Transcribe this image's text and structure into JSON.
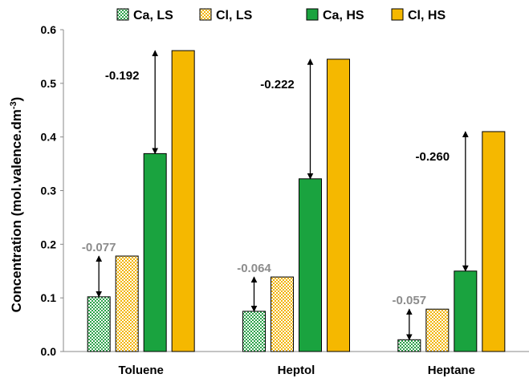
{
  "chart_data": {
    "type": "bar",
    "categories": [
      "Toluene",
      "Heptol",
      "Heptane"
    ],
    "series": [
      {
        "name": "Ca, LS",
        "values": [
          0.102,
          0.075,
          0.022
        ],
        "color": "#2ca24a",
        "fill": "checker-green"
      },
      {
        "name": "Cl, LS",
        "values": [
          0.178,
          0.139,
          0.079
        ],
        "color": "#f2b400",
        "fill": "checker-yellow"
      },
      {
        "name": "Ca, HS",
        "values": [
          0.369,
          0.322,
          0.15
        ],
        "color": "#1aa33f",
        "fill": "solid"
      },
      {
        "name": "Cl, HS",
        "values": [
          0.561,
          0.545,
          0.41
        ],
        "color": "#f5b800",
        "fill": "solid"
      }
    ],
    "ylabel": "Concentration (mol.valence.dm",
    "ylabel_superscript": "-3",
    "ylabel_suffix": ")",
    "ylim": [
      0,
      0.6
    ],
    "yticks": [
      "0.0",
      "0.1",
      "0.2",
      "0.3",
      "0.4",
      "0.5",
      "0.6"
    ],
    "grid": false,
    "legend_position": "top",
    "annotations": {
      "low_salinity": [
        {
          "category": "Toluene",
          "text": "-0.077",
          "color": "#8c8c8c"
        },
        {
          "category": "Heptol",
          "text": "-0.064",
          "color": "#8c8c8c"
        },
        {
          "category": "Heptane",
          "text": "-0.057",
          "color": "#8c8c8c"
        }
      ],
      "high_salinity": [
        {
          "category": "Toluene",
          "text": "-0.192",
          "color": "#000000"
        },
        {
          "category": "Heptol",
          "text": "-0.222",
          "color": "#000000"
        },
        {
          "category": "Heptane",
          "text": "-0.260",
          "color": "#000000"
        }
      ]
    }
  }
}
